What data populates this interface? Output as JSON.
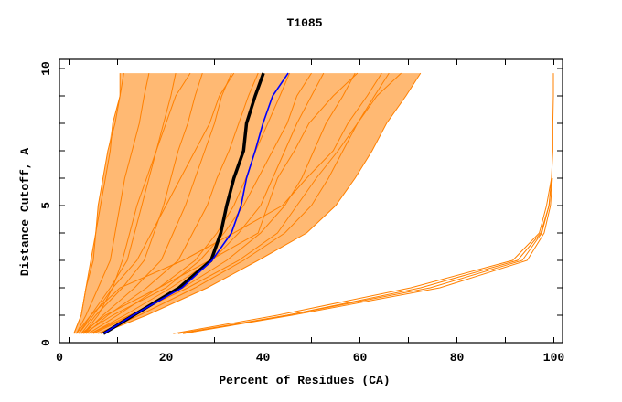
{
  "chart_data": {
    "type": "line",
    "title": "T1085",
    "xlabel": "Percent of Residues (CA)",
    "ylabel": "Distance Cutoff, A",
    "xlim": [
      -2,
      101.8
    ],
    "ylim": [
      0,
      10.33
    ],
    "xticks": [
      0,
      20,
      40,
      60,
      80,
      100
    ],
    "yticks": [
      0,
      5,
      10
    ],
    "grid": false,
    "legend": "none",
    "colors": {
      "models": "#ff8000",
      "highlight_black": "#000000",
      "highlight_blue": "#0000ff",
      "axes": "#000000"
    },
    "y_levels": [
      0.33,
      1,
      2,
      3,
      4,
      5,
      6,
      7,
      8,
      9,
      9.83
    ],
    "orange_series": [
      [
        1,
        2.5,
        3.5,
        5,
        5.5,
        6,
        7,
        8,
        9.5,
        10.5,
        11.3
      ],
      [
        1.5,
        3.5,
        6,
        8.5,
        9.5,
        10.5,
        11.5,
        13,
        14.5,
        15.5,
        16.5
      ],
      [
        2,
        4.5,
        8.5,
        12,
        13.5,
        15,
        16.5,
        18,
        19.5,
        21,
        22
      ],
      [
        2.5,
        5.5,
        11,
        15.5,
        17.5,
        19.5,
        21,
        22.5,
        24.5,
        26,
        27.5
      ],
      [
        3,
        7,
        13.5,
        19,
        21.5,
        24,
        26,
        28,
        30,
        31.5,
        33.5
      ],
      [
        3.5,
        8,
        16,
        22.5,
        25.5,
        28.5,
        30.5,
        33,
        35,
        37,
        39
      ],
      [
        4,
        10,
        18.5,
        26,
        30.5,
        34,
        36.5,
        38.5,
        41,
        43.5,
        45.5
      ],
      [
        4.5,
        11.5,
        21,
        29.5,
        35,
        39.5,
        42,
        44.5,
        47,
        50,
        52.5
      ],
      [
        5,
        13,
        23.5,
        32.5,
        39.5,
        44.5,
        48,
        50.5,
        53,
        56.5,
        59
      ],
      [
        6,
        14.5,
        26,
        36,
        44.5,
        50,
        53.5,
        56.5,
        59.5,
        63,
        66
      ],
      [
        6.5,
        16,
        28.5,
        39,
        49,
        55,
        59,
        62.5,
        65.5,
        69.5,
        72.5
      ],
      [
        1,
        2.5,
        3.5,
        4.5,
        5.5,
        6.5,
        7.5,
        8.5,
        9,
        10.5,
        10.5
      ],
      [
        2.5,
        7.5,
        18.5,
        29,
        39,
        41,
        43,
        46.5,
        49.5,
        54.5,
        59.5
      ],
      [
        1.5,
        4.5,
        10.5,
        23.5,
        34,
        44,
        49,
        54.5,
        57.5,
        61.5,
        64.5
      ],
      [
        4.5,
        12.5,
        24.5,
        35,
        43,
        47,
        51,
        55.5,
        59.5,
        63.5,
        68.5
      ],
      [
        3,
        6,
        9,
        11,
        12.5,
        14,
        16,
        18,
        20,
        22,
        25
      ],
      [
        2,
        5,
        9,
        14,
        17,
        20,
        23,
        26,
        29,
        31,
        34
      ],
      [
        3,
        9,
        20,
        27,
        32,
        36,
        39,
        42,
        45,
        47,
        50
      ],
      [
        21.5,
        43,
        70.5,
        91.5,
        97,
        98.5,
        99.5,
        99.8,
        99.8,
        99.9,
        99.9
      ],
      [
        22.5,
        45,
        74.5,
        93.5,
        97.5,
        99,
        99.5
      ],
      [
        23.5,
        46,
        76.5,
        94.5,
        98,
        99.3,
        99.7
      ],
      [
        23.5,
        45,
        72.5,
        92.5,
        97.3,
        99,
        99.6
      ]
    ],
    "blue_series": [
      7.1,
      13.2,
      23.3,
      29.5,
      33.5,
      35.5,
      36.6,
      38.4,
      40,
      42,
      45.2
    ],
    "black_series": [
      7.1,
      13.3,
      22.7,
      29.3,
      31.3,
      32.5,
      34,
      36,
      36.6,
      38.4,
      40.1
    ]
  }
}
